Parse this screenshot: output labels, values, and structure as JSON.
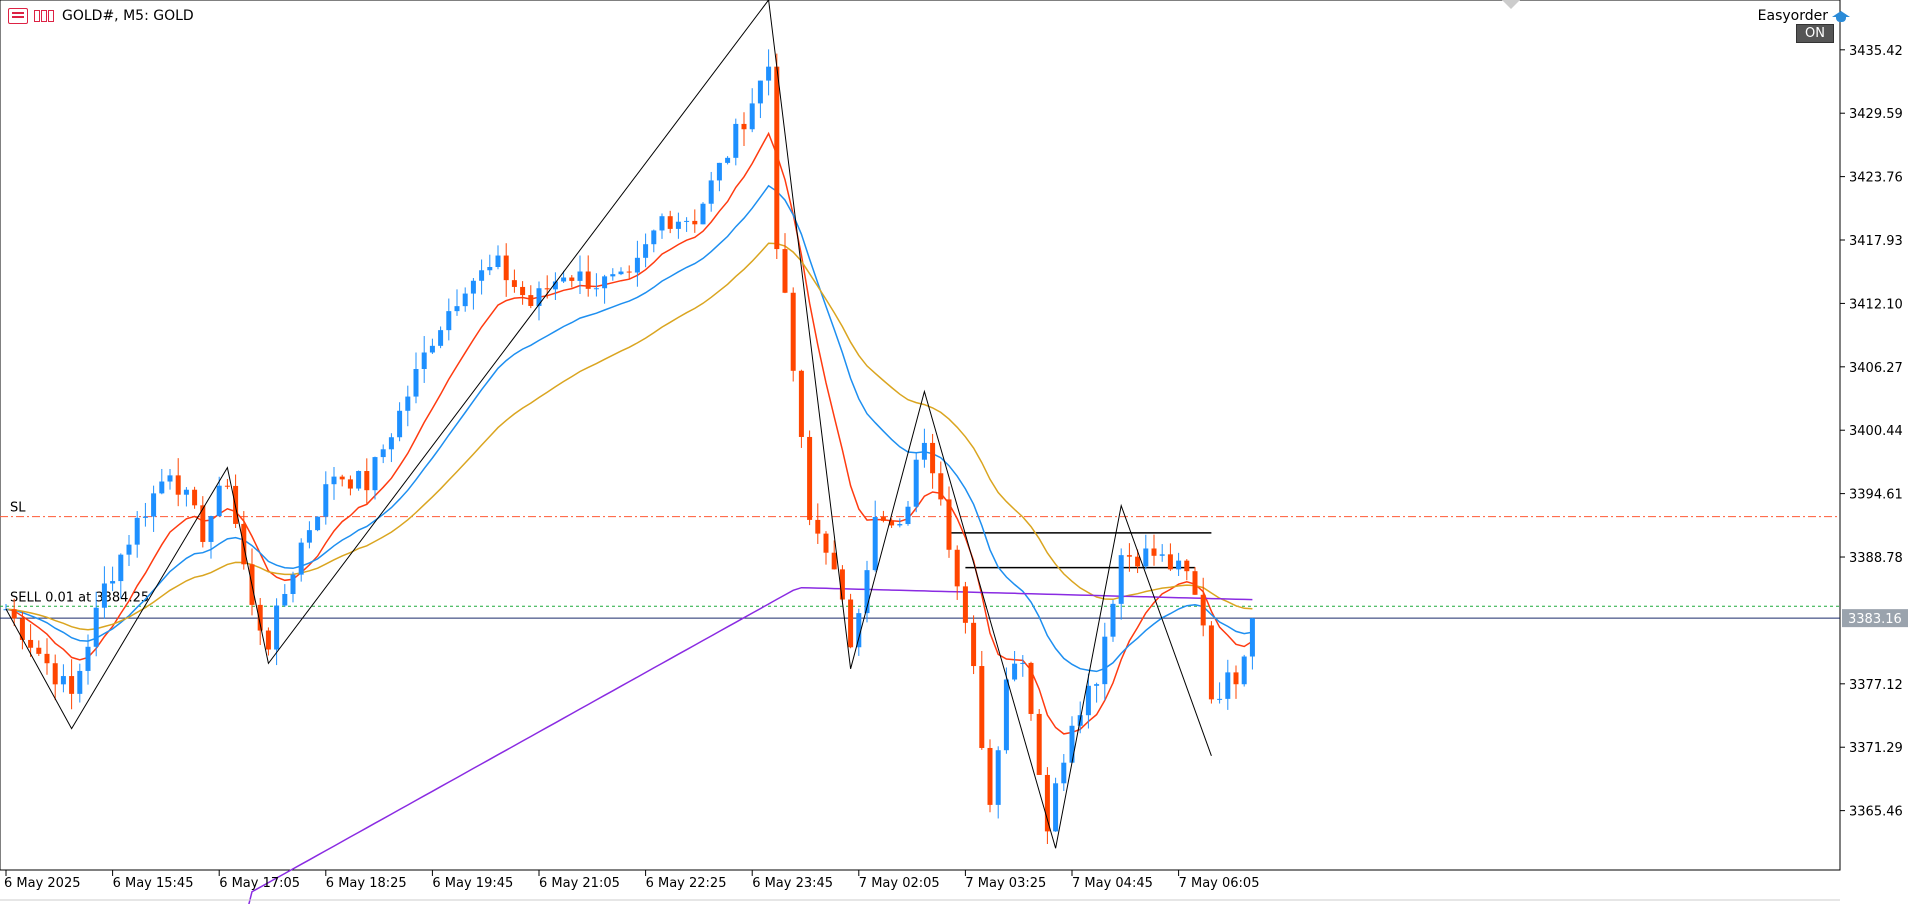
{
  "window": {
    "symbol_title": "GOLD#, M5:  GOLD",
    "plugin_label": "Easyorder",
    "plugin_state": "ON"
  },
  "colors": {
    "bull": "#1e90ff",
    "bear": "#ff4500",
    "ma_fast": "#ff3b10",
    "ma_mid": "#1e8ff0",
    "ma_slow": "#daa520",
    "ma_long": "#8a2be2",
    "sl_line": "#ff5a36",
    "order_line": "#1faa3c",
    "bid_line": "#1a2a6a",
    "bid_label_bg": "#9aa3ad"
  },
  "chart_data": {
    "type": "candlestick",
    "y_ticks": [
      "3435.42",
      "3429.59",
      "3423.76",
      "3417.93",
      "3412.10",
      "3406.27",
      "3400.44",
      "3394.61",
      "3388.78",
      "3377.12",
      "3371.29",
      "3365.46"
    ],
    "ylim": [
      3360.0,
      3440.0
    ],
    "x_tick_labels": [
      "6 May 2025",
      "6 May 15:45",
      "6 May 17:05",
      "6 May 18:25",
      "6 May 19:45",
      "6 May 21:05",
      "6 May 22:25",
      "6 May 23:45",
      "7 May 02:05",
      "7 May 03:25",
      "7 May 04:45",
      "7 May 06:05"
    ],
    "x_tick_bar_index": [
      0,
      13,
      26,
      39,
      52,
      65,
      78,
      91,
      104,
      117,
      130,
      143
    ],
    "bar_count": 153,
    "current_price": "3383.16",
    "sl": {
      "label": "SL",
      "price": 3392.5
    },
    "order": {
      "label": "SELL 0.01 at 3384.25",
      "price": 3384.25
    },
    "zigzag": [
      {
        "i": 0,
        "p": 3384.0
      },
      {
        "i": 8,
        "p": 3373.0
      },
      {
        "i": 27,
        "p": 3397.0
      },
      {
        "i": 32,
        "p": 3379.0
      },
      {
        "i": 93,
        "p": 3440.0
      },
      {
        "i": 103,
        "p": 3378.5
      },
      {
        "i": 112,
        "p": 3404.0
      },
      {
        "i": 128,
        "p": 3362.0
      },
      {
        "i": 136,
        "p": 3393.5
      },
      {
        "i": 147,
        "p": 3370.5
      }
    ],
    "horizontal_levels": [
      {
        "i0": 115,
        "i1": 147,
        "p": 3391.0
      },
      {
        "i0": 117,
        "i1": 145,
        "p": 3387.8
      }
    ],
    "ohlc_keys": [
      [
        0,
        3384.0
      ],
      [
        4,
        3380.0
      ],
      [
        8,
        3376.0
      ],
      [
        12,
        3386.0
      ],
      [
        16,
        3392.0
      ],
      [
        20,
        3397.0
      ],
      [
        24,
        3391.0
      ],
      [
        27,
        3396.0
      ],
      [
        30,
        3384.0
      ],
      [
        32,
        3381.0
      ],
      [
        36,
        3390.0
      ],
      [
        40,
        3396.5
      ],
      [
        44,
        3395.5
      ],
      [
        48,
        3402.0
      ],
      [
        52,
        3409.0
      ],
      [
        56,
        3414.0
      ],
      [
        60,
        3415.5
      ],
      [
        64,
        3412.0
      ],
      [
        68,
        3415.0
      ],
      [
        72,
        3414.0
      ],
      [
        76,
        3414.0
      ],
      [
        80,
        3420.0
      ],
      [
        84,
        3420.0
      ],
      [
        88,
        3426.0
      ],
      [
        93,
        3434.0
      ],
      [
        94,
        3418.0
      ],
      [
        96,
        3406.0
      ],
      [
        98,
        3392.0
      ],
      [
        100,
        3390.0
      ],
      [
        103,
        3381.0
      ],
      [
        106,
        3392.0
      ],
      [
        109,
        3391.0
      ],
      [
        112,
        3400.0
      ],
      [
        114,
        3395.0
      ],
      [
        116,
        3386.0
      ],
      [
        118,
        3378.0
      ],
      [
        120,
        3366.0
      ],
      [
        122,
        3378.0
      ],
      [
        124,
        3380.0
      ],
      [
        127,
        3364.0
      ],
      [
        130,
        3374.0
      ],
      [
        133,
        3378.0
      ],
      [
        136,
        3389.0
      ],
      [
        140,
        3389.0
      ],
      [
        144,
        3387.0
      ],
      [
        146,
        3383.0
      ],
      [
        147,
        3376.0
      ],
      [
        150,
        3378.0
      ],
      [
        152,
        3383.16
      ]
    ]
  }
}
